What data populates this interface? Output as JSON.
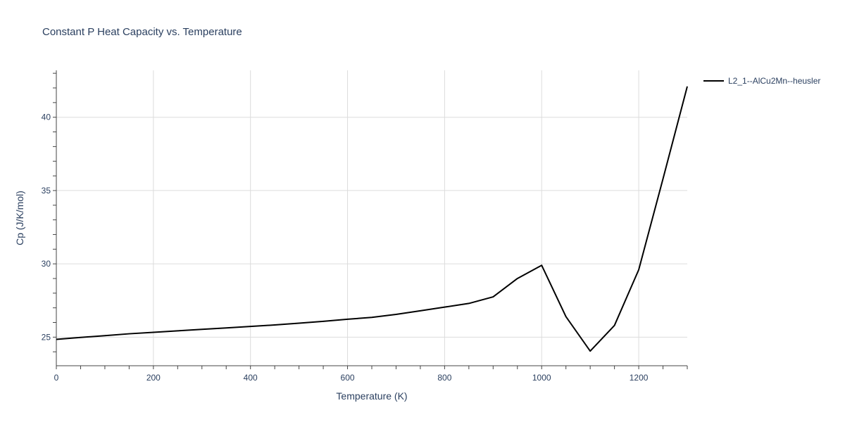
{
  "chart_data": {
    "type": "line",
    "title": "Constant P Heat Capacity vs. Temperature",
    "xlabel": "Temperature (K)",
    "ylabel": "Cp (J/K/mol)",
    "xlim": [
      0,
      1300
    ],
    "ylim": [
      23.05,
      43.2
    ],
    "x_ticks": [
      0,
      200,
      400,
      600,
      800,
      1000,
      1200
    ],
    "y_ticks": [
      25,
      30,
      35,
      40
    ],
    "grid": true,
    "legend_position": "top-right",
    "series": [
      {
        "name": "L2_1--AlCu2Mn--heusler",
        "color": "#000000",
        "x": [
          0,
          50,
          100,
          150,
          200,
          250,
          300,
          350,
          400,
          450,
          500,
          550,
          600,
          650,
          700,
          750,
          800,
          850,
          900,
          950,
          1000,
          1050,
          1100,
          1150,
          1200,
          1250,
          1300
        ],
        "y": [
          24.85,
          24.98,
          25.1,
          25.23,
          25.33,
          25.43,
          25.53,
          25.63,
          25.73,
          25.83,
          25.95,
          26.08,
          26.22,
          26.35,
          26.55,
          26.8,
          27.05,
          27.3,
          27.75,
          29.0,
          29.9,
          26.4,
          24.05,
          25.8,
          29.6,
          35.8,
          42.1
        ]
      }
    ]
  }
}
